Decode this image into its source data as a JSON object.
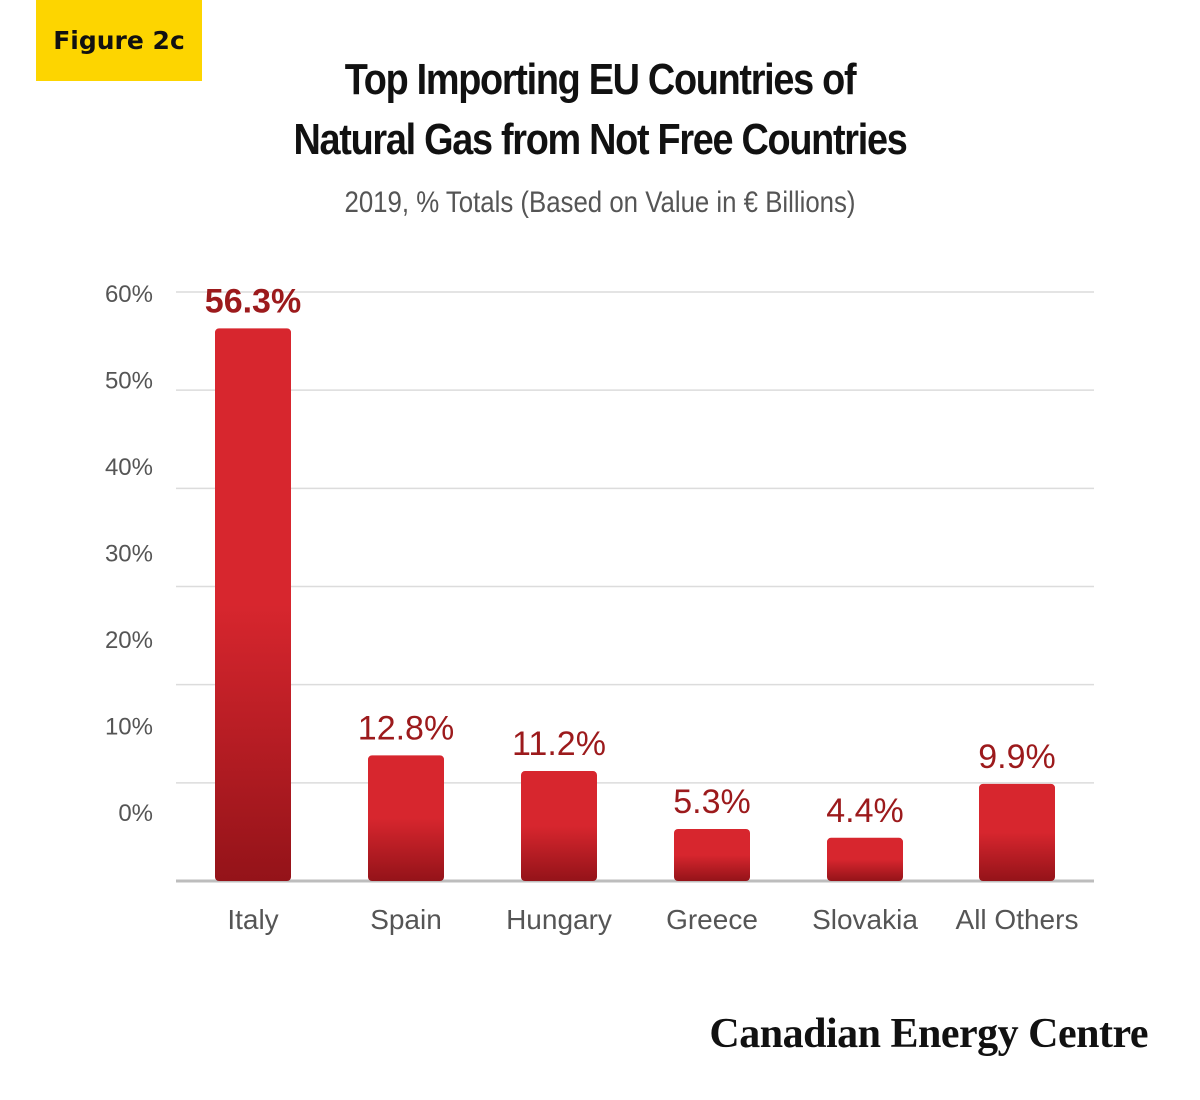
{
  "figure_label": "Figure 2c",
  "footer": {
    "brand": "Canadian Energy Centre"
  },
  "colors": {
    "bar_top": "#d7262e",
    "bar_bottom": "#941319",
    "value_label": "#9c1a1c",
    "grid": "#dcdcdc",
    "axis_text": "#555555",
    "badge": "#fdd500"
  },
  "chart_data": {
    "type": "bar",
    "title": "Top Importing EU Countries of Natural Gas from Not Free Countries",
    "title_lines": [
      "Top Importing EU Countries of",
      "Natural Gas from Not Free Countries"
    ],
    "subtitle": "2019, % Totals (Based on Value in € Billions)",
    "categories": [
      "Italy",
      "Spain",
      "Hungary",
      "Greece",
      "Slovakia",
      "All Others"
    ],
    "values": [
      56.3,
      12.8,
      11.2,
      5.3,
      4.4,
      9.9
    ],
    "value_labels": [
      "56.3%",
      "12.8%",
      "11.2%",
      "5.3%",
      "4.4%",
      "9.9%"
    ],
    "y_tick_labels": [
      "60%",
      "50%",
      "40%",
      "30%",
      "20%",
      "10%",
      "0%"
    ],
    "xlabel": "",
    "ylabel": "",
    "ylim": [
      0,
      60
    ],
    "grid": true,
    "legend": "none"
  }
}
